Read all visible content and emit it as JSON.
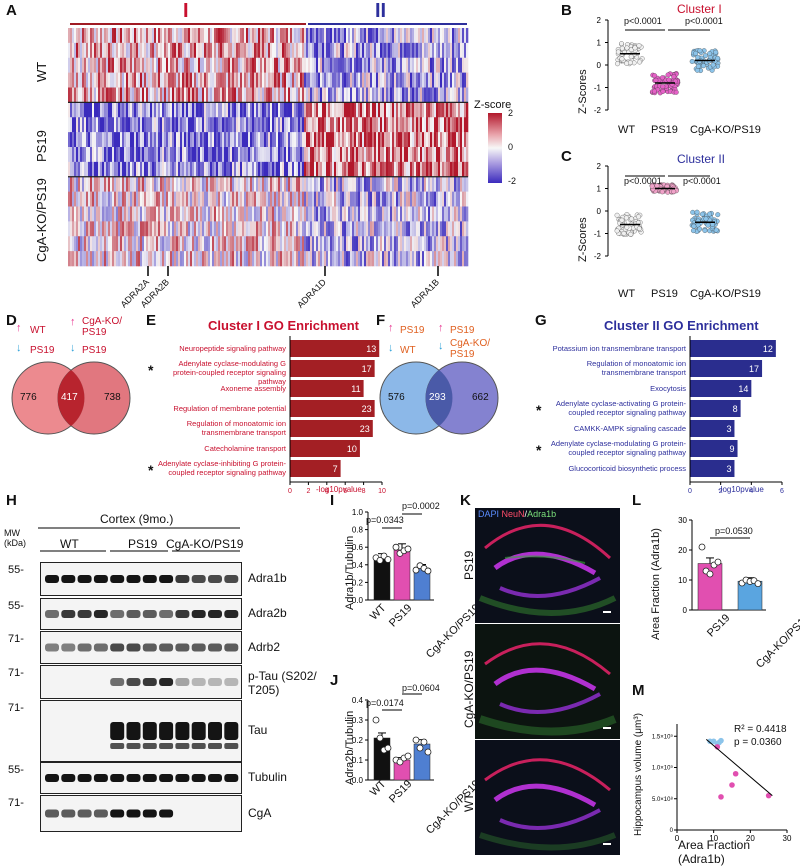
{
  "panel_letters": [
    "A",
    "B",
    "C",
    "D",
    "E",
    "F",
    "G",
    "H",
    "I",
    "J",
    "K",
    "L",
    "M"
  ],
  "panelA": {
    "cluster_labels": [
      "I",
      "II"
    ],
    "row_groups": [
      "WT",
      "PS19",
      "CgA-KO/PS19"
    ],
    "scale_title": "Z-score",
    "scale_ticks": [
      "2",
      "0",
      "-2"
    ],
    "gene_labels": [
      "ADRA2A",
      "ADRA2B",
      "ADRA1D",
      "ADRA1B"
    ],
    "colors": {
      "high": "#b2182b",
      "mid": "#f7f7f7",
      "low": "#3b2bbd"
    }
  },
  "panelB": {
    "title": "Cluster I",
    "ylabel": "Z-Scores",
    "groups": [
      "WT",
      "PS19",
      "CgA-KO/PS19"
    ],
    "pvalues": [
      "p<0.0001",
      "p<0.0001"
    ],
    "yticks": [
      "2",
      "1",
      "0",
      "-1",
      "-2"
    ],
    "chart_data": {
      "type": "scatter",
      "categories": [
        "WT",
        "PS19",
        "CgA-KO/PS19"
      ],
      "means": [
        0.5,
        -0.8,
        0.2
      ],
      "ylim": [
        -2,
        2
      ]
    }
  },
  "panelC": {
    "title": "Cluster II",
    "ylabel": "Z-Scores",
    "groups": [
      "WT",
      "PS19",
      "CgA-KO/PS19"
    ],
    "pvalues": [
      "p<0.0001",
      "p<0.0001"
    ],
    "yticks": [
      "2",
      "1",
      "0",
      "-1",
      "-2"
    ],
    "chart_data": {
      "type": "scatter",
      "categories": [
        "WT",
        "PS19",
        "CgA-KO/PS19"
      ],
      "means": [
        -0.6,
        1.0,
        -0.5
      ],
      "ylim": [
        -2,
        2
      ]
    }
  },
  "panelD": {
    "left_up": "WT",
    "left_down": "PS19",
    "right_up": "CgA-KO/\nPS19",
    "right_down": "PS19",
    "left_only": "776",
    "overlap": "417",
    "right_only": "738"
  },
  "panelE": {
    "title": "Cluster I GO Enrichment",
    "xlabel": "-log10pvalue",
    "xticks": [
      "0",
      "2",
      "4",
      "6",
      "8",
      "10"
    ],
    "chart_data": {
      "type": "bar",
      "categories": [
        "Neuropeptide signaling pathway",
        "Adenylate cyclase-modulating G protein-coupled receptor signaling pathway",
        "Axoneme assembly",
        "Regulation of membrane potential",
        "Regulation of monoatomic ion transmembrane transport",
        "Catecholamine transport",
        "Adenylate cyclase-inhibiting G protein-coupled receptor signaling pathway"
      ],
      "values": [
        9.7,
        9.2,
        8.0,
        9.2,
        9.0,
        7.6,
        5.5
      ],
      "bar_labels": [
        "13",
        "17",
        "11",
        "23",
        "23",
        "10",
        "7"
      ],
      "xlim": [
        0,
        10
      ]
    },
    "star_rows": [
      1,
      6
    ]
  },
  "panelF": {
    "left_up": "PS19",
    "left_down": "WT",
    "right_up": "PS19",
    "right_down": "CgA-KO/\nPS19",
    "left_only": "576",
    "overlap": "293",
    "right_only": "662"
  },
  "panelG": {
    "title": "Cluster II GO Enrichment",
    "xlabel": "-log10pvalue",
    "xticks": [
      "0",
      "2",
      "4",
      "6"
    ],
    "chart_data": {
      "type": "bar",
      "categories": [
        "Potassium ion transmembrane transport",
        "Regulation of monoatomic ion transmembrane transport",
        "Exocytosis",
        "Adenylate cyclase-activating G protein-coupled receptor signaling pathway",
        "CAMKK-AMPK signaling cascade",
        "Adenylate cyclase-modulating G protein-coupled receptor signaling pathway",
        "Glucocorticoid biosynthetic process"
      ],
      "values": [
        5.6,
        4.7,
        4.0,
        3.3,
        2.9,
        3.1,
        2.9
      ],
      "bar_labels": [
        "12",
        "17",
        "14",
        "8",
        "3",
        "9",
        "3"
      ],
      "xlim": [
        0,
        6
      ]
    },
    "star_rows": [
      3,
      5
    ]
  },
  "panelH": {
    "mw_label": "MW\n(kDa)",
    "header": "Cortex (9mo.)",
    "groups": [
      "WT",
      "PS19",
      "CgA-KO/PS19"
    ],
    "blots": [
      {
        "mw": "55-",
        "label": "Adra1b"
      },
      {
        "mw": "55-",
        "label": "Adra2b"
      },
      {
        "mw": "71-",
        "label": "Adrb2"
      },
      {
        "mw": "71-",
        "label": "p-Tau (S202/\nT205)"
      },
      {
        "mw": "71-",
        "label": "Tau"
      },
      {
        "mw": "55-",
        "label": "Tubulin"
      },
      {
        "mw": "71-",
        "label": "CgA"
      }
    ]
  },
  "panelI": {
    "ylabel": "Adra1b/Tubulin",
    "pvalues": [
      "p=0.0343",
      "p=0.0002"
    ],
    "yticks": [
      "1.0",
      "0.8",
      "0.6",
      "0.4",
      "0.2",
      "0.0"
    ],
    "groups": [
      "WT",
      "PS19",
      "CgA-KO/PS19"
    ],
    "chart_data": {
      "type": "bar",
      "categories": [
        "WT",
        "PS19",
        "CgA-KO/PS19"
      ],
      "values": [
        0.47,
        0.57,
        0.36
      ],
      "ylim": [
        0,
        1.0
      ]
    }
  },
  "panelJ": {
    "ylabel": "Adra2b/Tubulin",
    "pvalues": [
      "p=0.0174",
      "p=0.0604"
    ],
    "yticks": [
      "0.4",
      "0.3",
      "0.2",
      "0.1",
      "0.0"
    ],
    "groups": [
      "WT",
      "PS19",
      "CgA-KO/PS19"
    ],
    "chart_data": {
      "type": "bar",
      "categories": [
        "WT",
        "PS19",
        "CgA-KO/PS19"
      ],
      "values": [
        0.21,
        0.1,
        0.18
      ],
      "ylim": [
        0,
        0.4
      ]
    }
  },
  "panelK": {
    "legend": [
      "DAPI",
      "NeuN",
      "Adra1b"
    ],
    "rows": [
      "PS19",
      "CgA-KO/PS19",
      "WT"
    ]
  },
  "panelL": {
    "ylabel": "Area Fraction (Adra1b)",
    "pvalue": "p=0.0530",
    "yticks": [
      "30",
      "20",
      "10",
      "0"
    ],
    "groups": [
      "PS19",
      "CgA-KO/PS19"
    ],
    "chart_data": {
      "type": "bar",
      "categories": [
        "PS19",
        "CgA-KO/PS19"
      ],
      "values": [
        15.5,
        9.6
      ],
      "ylim": [
        0,
        30
      ]
    }
  },
  "panelM": {
    "ylabel": "Hippocampus volume (μm³)",
    "xlabel": "Area Fraction (Adra1b)",
    "stats": [
      "R² = 0.4418",
      "p = 0.0360"
    ],
    "xticks": [
      "0",
      "10",
      "20",
      "30"
    ],
    "yticks": [
      "1.5×10⁹",
      "1.0×10⁹",
      "5.0×10⁸",
      "0"
    ],
    "chart_data": {
      "type": "scatter",
      "series": [
        {
          "name": "",
          "x": [
            9,
            10,
            11,
            12,
            11.5
          ],
          "y": [
            1.42,
            1.42,
            1.38,
            1.43,
            1.4
          ]
        },
        {
          "name": "",
          "x": [
            11,
            12,
            15,
            16,
            25
          ],
          "y": [
            1.33,
            0.53,
            0.72,
            0.9,
            0.55
          ]
        }
      ],
      "xlim": [
        0,
        30
      ],
      "ylim": [
        0,
        1.6
      ]
    }
  }
}
